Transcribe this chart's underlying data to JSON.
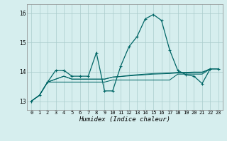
{
  "xlabel": "Humidex (Indice chaleur)",
  "x": [
    0,
    1,
    2,
    3,
    4,
    5,
    6,
    7,
    8,
    9,
    10,
    11,
    12,
    13,
    14,
    15,
    16,
    17,
    18,
    19,
    20,
    21,
    22,
    23
  ],
  "line1": [
    13.0,
    13.2,
    13.65,
    14.05,
    14.05,
    13.85,
    13.85,
    13.85,
    14.65,
    13.35,
    13.35,
    14.2,
    14.85,
    15.2,
    15.8,
    15.95,
    15.75,
    14.75,
    14.05,
    13.9,
    13.85,
    13.6,
    14.1,
    14.1
  ],
  "line2": [
    13.0,
    13.2,
    13.65,
    13.65,
    13.65,
    13.65,
    13.65,
    13.65,
    13.65,
    13.65,
    13.72,
    13.72,
    13.72,
    13.72,
    13.72,
    13.72,
    13.72,
    13.72,
    13.92,
    13.92,
    13.92,
    13.92,
    14.1,
    14.1
  ],
  "line3": [
    13.0,
    13.2,
    13.65,
    13.75,
    13.85,
    13.75,
    13.75,
    13.75,
    13.75,
    13.75,
    13.82,
    13.84,
    13.86,
    13.88,
    13.9,
    13.92,
    13.93,
    13.94,
    13.96,
    13.96,
    13.97,
    13.97,
    14.1,
    14.1
  ],
  "line4": [
    13.0,
    13.2,
    13.65,
    13.75,
    13.85,
    13.75,
    13.75,
    13.75,
    13.75,
    13.75,
    13.82,
    13.84,
    13.88,
    13.9,
    13.92,
    13.94,
    13.95,
    13.96,
    13.98,
    13.98,
    13.99,
    13.99,
    14.1,
    14.1
  ],
  "ylim": [
    12.7,
    16.3
  ],
  "yticks": [
    13,
    14,
    15,
    16
  ],
  "xlim": [
    -0.5,
    23.5
  ],
  "bg_color": "#d6eeee",
  "line_color": "#006666",
  "grid_color": "#aacccc",
  "spine_color": "#888888"
}
